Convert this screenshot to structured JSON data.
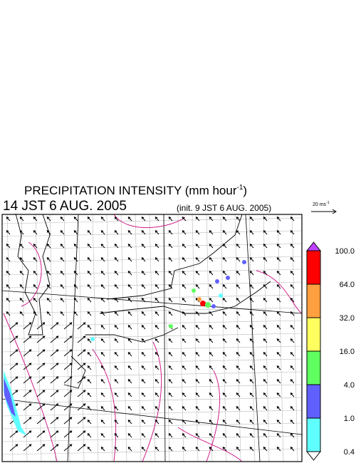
{
  "header": {
    "title": "PRECIPITATION INTENSITY (mm hour",
    "title_exponent": "-1",
    "title_close": ")",
    "time": "14 JST 6 AUG. 2005",
    "init": "(init. 9 JST 6 AUG. 2005)"
  },
  "wind_legend": {
    "label": "20 ms",
    "exponent": "-1"
  },
  "colorbar": {
    "levels": [
      {
        "value": 100,
        "label": "100.0"
      },
      {
        "value": 64,
        "label": "64.0"
      },
      {
        "value": 32,
        "label": "32.0"
      },
      {
        "value": 16,
        "label": "16.0"
      },
      {
        "value": 4,
        "label": "4.0"
      },
      {
        "value": 1,
        "label": "1.0"
      },
      {
        "value": 0.4,
        "label": "0.4"
      }
    ],
    "colors": [
      "#ff0000",
      "#ffa040",
      "#ffff60",
      "#60ff60",
      "#6060ff",
      "#60ffff"
    ],
    "over_color": "#c040ff",
    "under_color": "#ffffff"
  }
}
